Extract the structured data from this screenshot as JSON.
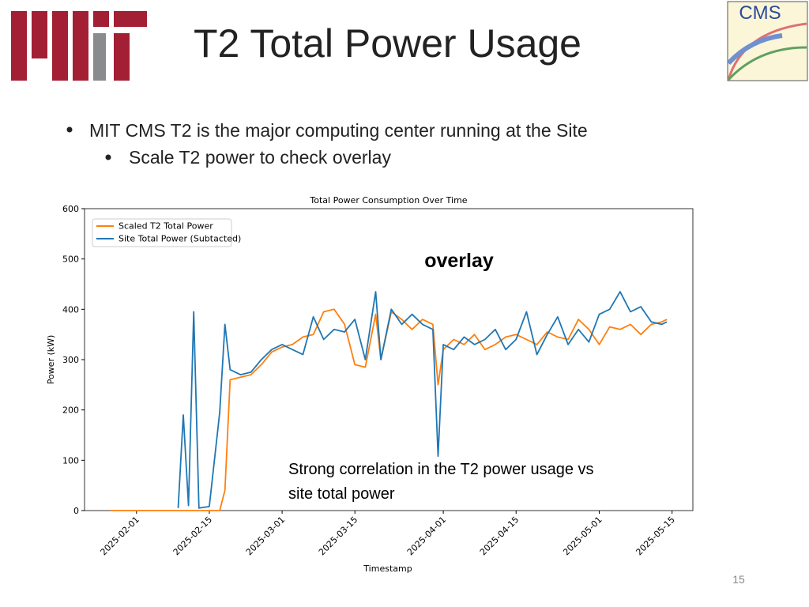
{
  "title": "T2 Total Power Usage",
  "bullets": [
    "MIT CMS T2 is the major computing center running at the Site",
    "Scale T2 power to check overlay"
  ],
  "cms_logo_text": "CMS",
  "page_number": "15",
  "chart_data": {
    "type": "line",
    "title": "Total Power Consumption Over Time",
    "x_label": "Timestamp",
    "y_label": "Power (kW)",
    "annotations": [
      "overlay",
      "Strong correlation in the T2 power usage vs",
      "site total power"
    ],
    "legend": "upper left",
    "x": [
      "2025-01-27",
      "2025-02-03",
      "2025-02-09",
      "2025-02-10",
      "2025-02-11",
      "2025-02-12",
      "2025-02-13",
      "2025-02-15",
      "2025-02-17",
      "2025-02-18",
      "2025-02-19",
      "2025-02-21",
      "2025-02-23",
      "2025-02-25",
      "2025-02-27",
      "2025-03-01",
      "2025-03-03",
      "2025-03-05",
      "2025-03-07",
      "2025-03-09",
      "2025-03-11",
      "2025-03-13",
      "2025-03-15",
      "2025-03-17",
      "2025-03-19",
      "2025-03-20",
      "2025-03-22",
      "2025-03-24",
      "2025-03-26",
      "2025-03-28",
      "2025-03-30",
      "2025-03-31",
      "2025-04-01",
      "2025-04-03",
      "2025-04-05",
      "2025-04-07",
      "2025-04-09",
      "2025-04-11",
      "2025-04-13",
      "2025-04-15",
      "2025-04-17",
      "2025-04-19",
      "2025-04-21",
      "2025-04-23",
      "2025-04-25",
      "2025-04-27",
      "2025-04-29",
      "2025-05-01",
      "2025-05-03",
      "2025-05-05",
      "2025-05-07",
      "2025-05-09",
      "2025-05-11",
      "2025-05-13",
      "2025-05-14"
    ],
    "series": [
      {
        "name": "Scaled T2 Total Power",
        "color": "#ff7f0e",
        "values": [
          0,
          0,
          0,
          0,
          0,
          0,
          0,
          0,
          0,
          40,
          260,
          265,
          270,
          290,
          315,
          325,
          330,
          345,
          350,
          395,
          400,
          370,
          290,
          285,
          390,
          300,
          395,
          380,
          360,
          380,
          370,
          250,
          320,
          340,
          330,
          350,
          320,
          330,
          345,
          350,
          340,
          330,
          355,
          345,
          340,
          380,
          360,
          330,
          365,
          360,
          370,
          350,
          370,
          375,
          380
        ]
      },
      {
        "name": "Site Total Power (Subtacted)",
        "color": "#1f77b4",
        "values": [
          null,
          null,
          5,
          190,
          10,
          395,
          5,
          8,
          195,
          370,
          280,
          270,
          275,
          300,
          320,
          330,
          320,
          310,
          385,
          340,
          360,
          355,
          380,
          300,
          435,
          300,
          400,
          370,
          390,
          370,
          360,
          108,
          330,
          320,
          345,
          330,
          340,
          360,
          320,
          340,
          395,
          310,
          350,
          385,
          330,
          360,
          335,
          390,
          400,
          435,
          395,
          405,
          375,
          370,
          375
        ]
      }
    ],
    "xlim": [
      "2025-01-22",
      "2025-05-19"
    ],
    "xticks": [
      "2025-02-01",
      "2025-02-15",
      "2025-03-01",
      "2025-03-15",
      "2025-04-01",
      "2025-04-15",
      "2025-05-01",
      "2025-05-15"
    ],
    "ylim": [
      0,
      600
    ],
    "yticks": [
      0,
      100,
      200,
      300,
      400,
      500,
      600
    ]
  }
}
